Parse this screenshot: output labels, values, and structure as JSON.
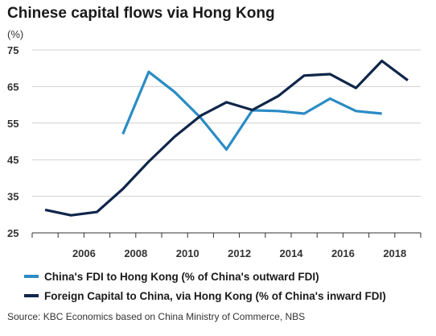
{
  "title": "Chinese capital flows via Hong Kong",
  "unit_label": "(%)",
  "source": "Source: KBC Economics based on China Ministry of Commerce, NBS",
  "chart_data": {
    "type": "line",
    "xlim": [
      2004,
      2019
    ],
    "ylim": [
      25,
      75
    ],
    "yticks": [
      25,
      35,
      45,
      55,
      65,
      75
    ],
    "xticks": [
      2006,
      2008,
      2010,
      2012,
      2014,
      2016,
      2018
    ],
    "grid": "horizontal",
    "legend_position": "bottom",
    "series": [
      {
        "name": "China's FDI to Hong Kong (% of China's outward FDI)",
        "color": "#2b8cc4",
        "x": [
          2007.5,
          2008.5,
          2009.5,
          2010.5,
          2011.5,
          2012.5,
          2013.5,
          2014.5,
          2015.5,
          2016.5,
          2017.5
        ],
        "y": [
          52,
          69,
          63.5,
          56.5,
          47.8,
          58.5,
          58.3,
          57.6,
          61.7,
          58.3,
          57.6
        ]
      },
      {
        "name": "Foreign Capital to China, via Hong Kong (% of China's inward FDI)",
        "color": "#10264a",
        "x": [
          2004.5,
          2005.5,
          2006.5,
          2007.5,
          2008.5,
          2009.5,
          2010.5,
          2011.5,
          2012.5,
          2013.5,
          2014.5,
          2015.5,
          2016.5,
          2017.5,
          2018.5
        ],
        "y": [
          31.3,
          29.8,
          30.7,
          37,
          44.5,
          51.3,
          57,
          60.7,
          58.6,
          62.4,
          68,
          68.4,
          64.6,
          72,
          66.7
        ]
      }
    ]
  }
}
